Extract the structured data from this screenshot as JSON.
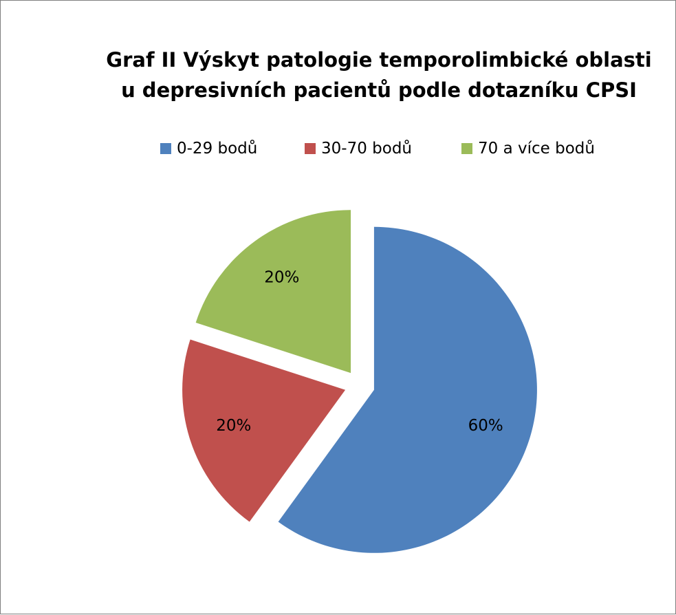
{
  "chart_data": {
    "type": "pie",
    "title": "Graf II Výskyt patologie temporolimbické oblasti\nu depresivních pacientů podle dotazníku CPSI",
    "title_lines": [
      "Graf II Výskyt patologie temporolimbické oblasti",
      "u depresivních pacientů podle dotazníku CPSI"
    ],
    "legend_position": "top",
    "exploded": true,
    "categories": [
      "0-29 bodů",
      "30-70 bodů",
      "70 a více bodů"
    ],
    "values": [
      60,
      20,
      20
    ],
    "data_labels": [
      "60%",
      "20%",
      "20%"
    ],
    "colors": [
      "#4F81BD",
      "#C0504D",
      "#9BBB59"
    ]
  }
}
